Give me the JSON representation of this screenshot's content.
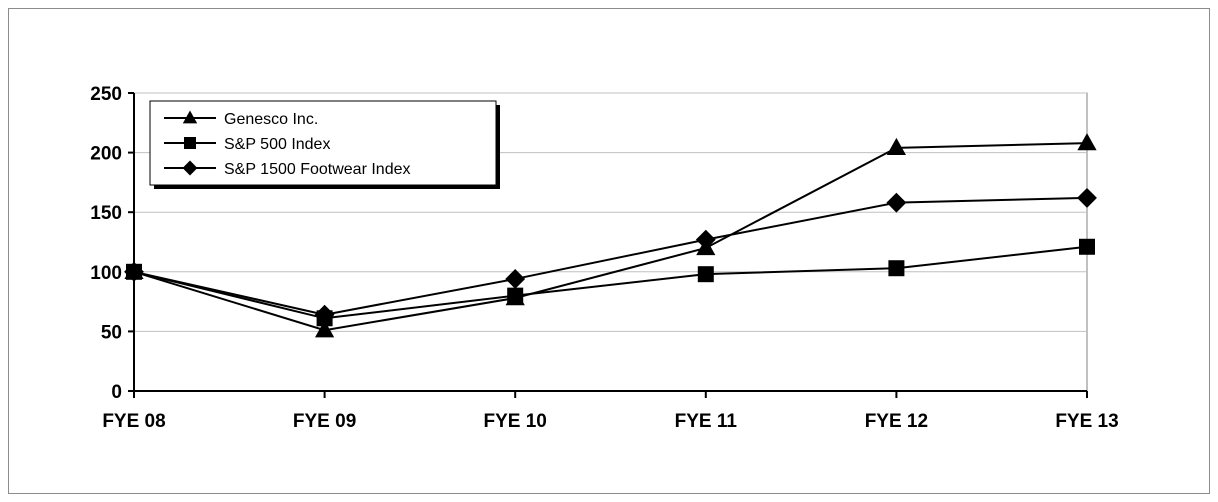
{
  "chart_data": {
    "type": "line",
    "title": "",
    "xlabel": "",
    "ylabel": "",
    "categories": [
      "FYE 08",
      "FYE 09",
      "FYE 10",
      "FYE 11",
      "FYE 12",
      "FYE 13"
    ],
    "ylim": [
      0,
      250
    ],
    "yticks": [
      0,
      50,
      100,
      150,
      200,
      250
    ],
    "grid": true,
    "legend_position": "top-left",
    "series": [
      {
        "name": "Genesco Inc.",
        "marker": "triangle",
        "color": "#000000",
        "values": [
          100,
          51,
          78,
          120,
          204,
          208
        ]
      },
      {
        "name": "S&P 500 Index",
        "marker": "square",
        "color": "#000000",
        "values": [
          100,
          61,
          80,
          98,
          103,
          121
        ]
      },
      {
        "name": "S&P 1500 Footwear Index",
        "marker": "diamond",
        "color": "#000000",
        "values": [
          100,
          64,
          94,
          127,
          158,
          162
        ]
      }
    ]
  }
}
